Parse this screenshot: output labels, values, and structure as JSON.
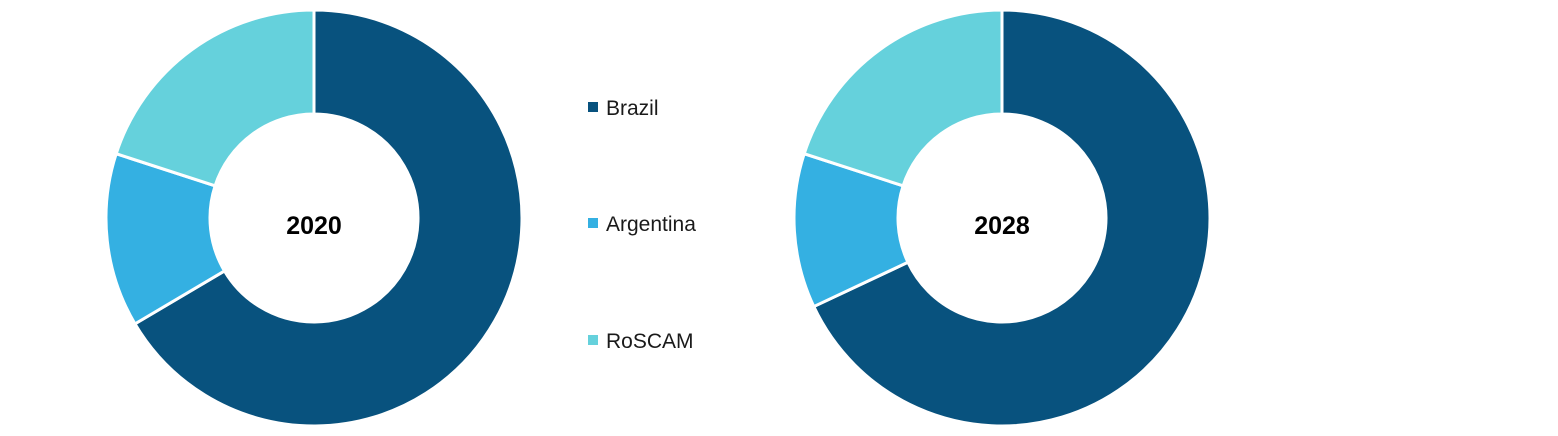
{
  "chart_data": [
    {
      "type": "donut",
      "center_label": "2020",
      "categories": [
        "Brazil",
        "Argentina",
        "RoSCAM"
      ],
      "values": [
        66.5,
        13.5,
        20.0
      ],
      "colors": [
        "#08527e",
        "#34b0e2",
        "#65d1dc"
      ]
    },
    {
      "type": "donut",
      "center_label": "2028",
      "categories": [
        "Brazil",
        "Argentina",
        "RoSCAM"
      ],
      "values": [
        68.0,
        12.0,
        20.0
      ],
      "colors": [
        "#08527e",
        "#34b0e2",
        "#65d1dc"
      ]
    }
  ],
  "legend": {
    "items": [
      {
        "label": "Brazil",
        "color": "#08527e"
      },
      {
        "label": "Argentina",
        "color": "#34b0e2"
      },
      {
        "label": "RoSCAM",
        "color": "#65d1dc"
      }
    ]
  }
}
